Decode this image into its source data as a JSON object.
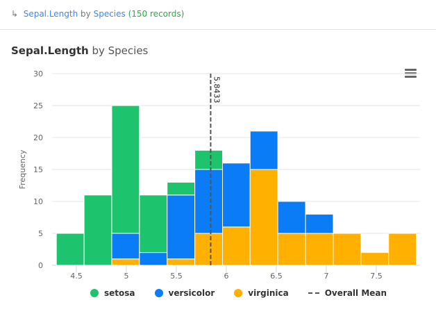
{
  "breadcrumb": {
    "arrow": "↳",
    "field": "Sepal.Length",
    "by": "by",
    "group": "Species",
    "count": "(150 records)"
  },
  "title": {
    "field": "Sepal.Length",
    "rest": "by Species"
  },
  "chart_data": {
    "type": "bar",
    "stacked": true,
    "title": "Sepal.Length by Species",
    "ylabel": "Frequency",
    "xlabel": "",
    "ylim": [
      0,
      30
    ],
    "yticks": [
      0,
      5,
      10,
      15,
      20,
      25,
      30
    ],
    "xlim": [
      4.3,
      7.9
    ],
    "xticks": [
      4.5,
      5,
      5.5,
      6,
      6.5,
      7,
      7.5
    ],
    "bin_edges": [
      4.3,
      4.577,
      4.854,
      5.131,
      5.408,
      5.685,
      5.962,
      6.238,
      6.515,
      6.792,
      7.069,
      7.346,
      7.623,
      7.9
    ],
    "series": [
      {
        "name": "setosa",
        "color": "#1dc46d",
        "values": [
          5,
          11,
          20,
          9,
          2,
          3,
          0,
          0,
          0,
          0,
          0,
          0,
          0
        ]
      },
      {
        "name": "versicolor",
        "color": "#0a7cf6",
        "values": [
          0,
          0,
          4,
          2,
          10,
          10,
          10,
          6,
          5,
          3,
          0,
          0,
          0
        ]
      },
      {
        "name": "virginica",
        "color": "#ffb000",
        "values": [
          0,
          0,
          1,
          0,
          1,
          5,
          6,
          15,
          5,
          5,
          5,
          2,
          5
        ]
      }
    ],
    "mean_line": {
      "name": "Overall Mean",
      "value": 5.8433,
      "label": "5.8433"
    },
    "grid": true,
    "legend": "bottom"
  },
  "legend_items": [
    "setosa",
    "versicolor",
    "virginica",
    "Overall Mean"
  ]
}
